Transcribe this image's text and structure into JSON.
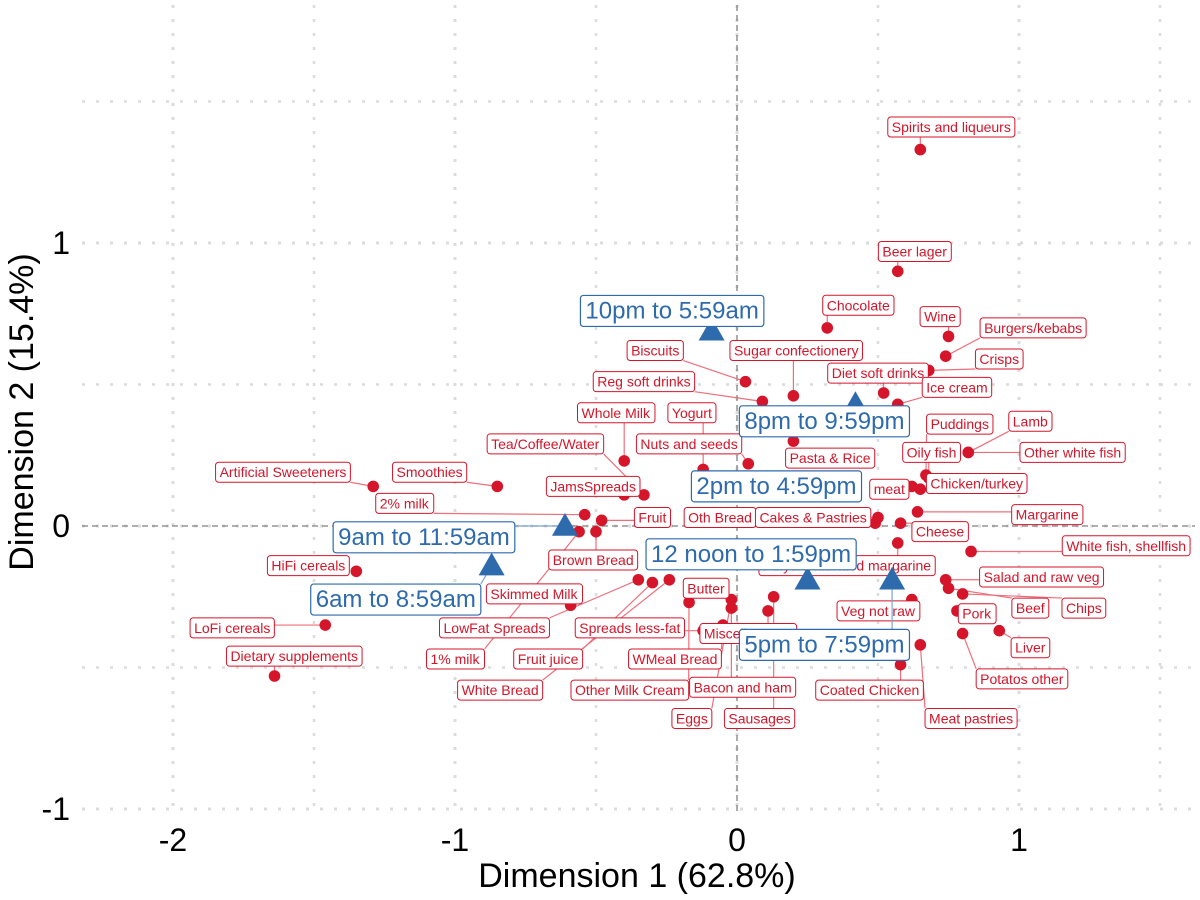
{
  "chart_data": {
    "type": "scatter",
    "xlabel": "Dimension 1 (62.8%)",
    "ylabel": "Dimension 2 (15.4%)",
    "xlim": [
      -2.3,
      1.6
    ],
    "ylim": [
      -1.1,
      1.65
    ],
    "x_ticks": [
      -2,
      -1,
      0,
      1
    ],
    "y_ticks": [
      -1,
      0,
      1
    ],
    "x_tick_labels": [
      "-2",
      "-1",
      "0",
      "1"
    ],
    "y_tick_labels": [
      "-1",
      "0",
      "1"
    ],
    "grid": true,
    "reference_lines": [
      {
        "axis": "x",
        "value": 0
      },
      {
        "axis": "y",
        "value": 0
      }
    ],
    "colors": {
      "food": "#d5152a",
      "time": "#2e6bad",
      "grid": "#dcdcdc",
      "refline": "#7f7f7f"
    },
    "series": [
      {
        "points": [
          {
            "label": "Spirits and liqueurs",
            "x": 0.65,
            "y": 1.33,
            "lx": 0.76,
            "ly": 1.41
          },
          {
            "label": "Beer lager",
            "x": 0.57,
            "y": 0.9,
            "lx": 0.63,
            "ly": 0.97
          },
          {
            "label": "Chocolate",
            "x": 0.32,
            "y": 0.7,
            "lx": 0.43,
            "ly": 0.78
          },
          {
            "label": "Wine",
            "x": 0.75,
            "y": 0.67,
            "lx": 0.72,
            "ly": 0.74
          },
          {
            "label": "Burgers/kebabs",
            "x": 0.74,
            "y": 0.6,
            "lx": 1.05,
            "ly": 0.7
          },
          {
            "label": "Crisps",
            "x": 0.68,
            "y": 0.55,
            "lx": 0.93,
            "ly": 0.59
          },
          {
            "label": "Biscuits",
            "x": 0.03,
            "y": 0.51,
            "lx": -0.29,
            "ly": 0.62
          },
          {
            "label": "Sugar confectionery",
            "x": 0.2,
            "y": 0.46,
            "lx": 0.21,
            "ly": 0.62
          },
          {
            "label": "Diet soft drinks",
            "x": 0.52,
            "y": 0.47,
            "lx": 0.5,
            "ly": 0.54
          },
          {
            "label": "Ice cream",
            "x": 0.57,
            "y": 0.43,
            "lx": 0.78,
            "ly": 0.49
          },
          {
            "label": "Reg soft drinks",
            "x": 0.09,
            "y": 0.44,
            "lx": -0.33,
            "ly": 0.51
          },
          {
            "label": "Whole Milk",
            "x": -0.4,
            "y": 0.23,
            "lx": -0.43,
            "ly": 0.4
          },
          {
            "label": "Yogurt",
            "x": -0.12,
            "y": 0.2,
            "lx": -0.16,
            "ly": 0.4
          },
          {
            "label": "Puddings",
            "x": 0.67,
            "y": 0.18,
            "lx": 0.79,
            "ly": 0.36
          },
          {
            "label": "Lamb",
            "x": 0.82,
            "y": 0.26,
            "lx": 1.04,
            "ly": 0.37
          },
          {
            "label": "Tea/Coffee/Water",
            "x": -0.33,
            "y": 0.11,
            "lx": -0.68,
            "ly": 0.29
          },
          {
            "label": "Nuts and seeds",
            "x": 0.04,
            "y": 0.22,
            "lx": -0.17,
            "ly": 0.29
          },
          {
            "label": "Oily fish",
            "x": 0.68,
            "y": 0.17,
            "lx": 0.69,
            "ly": 0.26
          },
          {
            "label": "Other white fish",
            "x": 0.82,
            "y": 0.26,
            "lx": 1.19,
            "ly": 0.26
          },
          {
            "label": "Pasta & Rice",
            "x": 0.2,
            "y": 0.3,
            "lx": 0.33,
            "ly": 0.24
          },
          {
            "label": "Artificial Sweeteners",
            "x": -1.29,
            "y": 0.14,
            "lx": -1.61,
            "ly": 0.19
          },
          {
            "label": "Smoothies",
            "x": -0.85,
            "y": 0.14,
            "lx": -1.09,
            "ly": 0.19
          },
          {
            "label": "JamsSpreads",
            "x": -0.4,
            "y": 0.11,
            "lx": -0.51,
            "ly": 0.14
          },
          {
            "label": "meat",
            "x": 0.62,
            "y": 0.14,
            "lx": 0.54,
            "ly": 0.13
          },
          {
            "label": "Chicken/turkey",
            "x": 0.65,
            "y": 0.13,
            "lx": 0.85,
            "ly": 0.15
          },
          {
            "label": "2% milk",
            "x": -0.54,
            "y": 0.04,
            "lx": -1.18,
            "ly": 0.08
          },
          {
            "label": "Fruit",
            "x": -0.48,
            "y": 0.02,
            "lx": -0.3,
            "ly": 0.03
          },
          {
            "label": "Oth Bread",
            "x": 0.5,
            "y": 0.03,
            "lx": -0.06,
            "ly": 0.03
          },
          {
            "label": "Cakes & Pastries",
            "x": 0.49,
            "y": 0.01,
            "lx": 0.27,
            "ly": 0.03
          },
          {
            "label": "Margarine",
            "x": 0.64,
            "y": 0.05,
            "lx": 1.1,
            "ly": 0.04
          },
          {
            "label": "Cheese",
            "x": 0.58,
            "y": 0.01,
            "lx": 0.72,
            "ly": -0.02
          },
          {
            "label": "Brown Bread",
            "x": -0.5,
            "y": -0.02,
            "lx": -0.51,
            "ly": -0.12
          },
          {
            "label": "White fish, shellfish",
            "x": 0.83,
            "y": -0.09,
            "lx": 1.38,
            "ly": -0.07
          },
          {
            "label": "Polyunsaturated margarine",
            "x": 0.57,
            "y": -0.06,
            "lx": 0.39,
            "ly": -0.14
          },
          {
            "label": "HiFi cereals",
            "x": -1.35,
            "y": -0.16,
            "lx": -1.52,
            "ly": -0.14
          },
          {
            "label": "Salad and raw veg",
            "x": 0.74,
            "y": -0.19,
            "lx": 1.08,
            "ly": -0.18
          },
          {
            "label": "Skimmed Milk",
            "x": -0.59,
            "y": -0.28,
            "lx": -0.72,
            "ly": -0.24
          },
          {
            "label": "Butter",
            "x": -0.17,
            "y": -0.27,
            "lx": -0.11,
            "ly": -0.22
          },
          {
            "label": "Beef",
            "x": 0.75,
            "y": -0.22,
            "lx": 1.04,
            "ly": -0.29
          },
          {
            "label": "Chips",
            "x": 0.8,
            "y": -0.24,
            "lx": 1.23,
            "ly": -0.29
          },
          {
            "label": "Veg not raw",
            "x": 0.62,
            "y": -0.26,
            "lx": 0.5,
            "ly": -0.3
          },
          {
            "label": "Pork",
            "x": 0.78,
            "y": -0.3,
            "lx": 0.85,
            "ly": -0.31
          },
          {
            "label": "LoFi cereals",
            "x": -1.46,
            "y": -0.35,
            "lx": -1.79,
            "ly": -0.36
          },
          {
            "label": "LowFat Spreads",
            "x": -0.35,
            "y": -0.19,
            "lx": -0.86,
            "ly": -0.36
          },
          {
            "label": "Spreads less-fat",
            "x": -0.12,
            "y": -0.37,
            "lx": -0.38,
            "ly": -0.36
          },
          {
            "label": "Miscellaneous",
            "x": 0.11,
            "y": -0.3,
            "lx": 0.04,
            "ly": -0.38
          },
          {
            "label": "Liver",
            "x": 0.93,
            "y": -0.37,
            "lx": 1.04,
            "ly": -0.43
          },
          {
            "label": "1% milk",
            "x": -0.56,
            "y": -0.02,
            "lx": -1.0,
            "ly": -0.47
          },
          {
            "label": "Fruit juice",
            "x": -0.3,
            "y": -0.2,
            "lx": -0.67,
            "ly": -0.47
          },
          {
            "label": "WMeal Bread",
            "x": -0.05,
            "y": -0.35,
            "lx": -0.22,
            "ly": -0.47
          },
          {
            "label": "Coated Chicken",
            "x": 0.58,
            "y": -0.49,
            "lx": 0.47,
            "ly": -0.58
          },
          {
            "label": "Potatos other",
            "x": 0.8,
            "y": -0.38,
            "lx": 1.01,
            "ly": -0.54
          },
          {
            "label": "Bacon and ham",
            "x": -0.02,
            "y": -0.29,
            "lx": 0.02,
            "ly": -0.57
          },
          {
            "label": "White Bread",
            "x": -0.24,
            "y": -0.19,
            "lx": -0.84,
            "ly": -0.58
          },
          {
            "label": "Other Milk Cream",
            "x": -0.17,
            "y": -0.22,
            "lx": -0.38,
            "ly": -0.58
          },
          {
            "label": "Dietary supplements",
            "x": -1.64,
            "y": -0.53,
            "lx": -1.57,
            "ly": -0.46
          },
          {
            "label": "Eggs",
            "x": -0.02,
            "y": -0.26,
            "lx": -0.16,
            "ly": -0.68
          },
          {
            "label": "Sausages",
            "x": 0.13,
            "y": -0.25,
            "lx": 0.08,
            "ly": -0.68
          },
          {
            "label": "Meat pastries",
            "x": 0.65,
            "y": -0.42,
            "lx": 0.83,
            "ly": -0.68
          }
        ]
      },
      {
        "points": [
          {
            "label": "10pm to 5:59am",
            "x": -0.09,
            "y": 0.69,
            "lx": -0.23,
            "ly": 0.76
          },
          {
            "label": "8pm to 9:59pm",
            "x": 0.42,
            "y": 0.43,
            "lx": 0.31,
            "ly": 0.37
          },
          {
            "label": "2pm to 4:59pm",
            "x": 0.29,
            "y": 0.12,
            "lx": 0.14,
            "ly": 0.14
          },
          {
            "label": "9am to 11:59am",
            "x": -0.61,
            "y": 0.0,
            "lx": -1.11,
            "ly": -0.04
          },
          {
            "label": "12 noon to 1:59pm",
            "x": 0.25,
            "y": -0.19,
            "lx": 0.05,
            "ly": -0.1
          },
          {
            "label": "6am to 8:59am",
            "x": -0.87,
            "y": -0.14,
            "lx": -1.21,
            "ly": -0.26
          },
          {
            "label": "5pm to 7:59pm",
            "x": 0.55,
            "y": -0.19,
            "lx": 0.31,
            "ly": -0.42
          }
        ]
      }
    ]
  }
}
